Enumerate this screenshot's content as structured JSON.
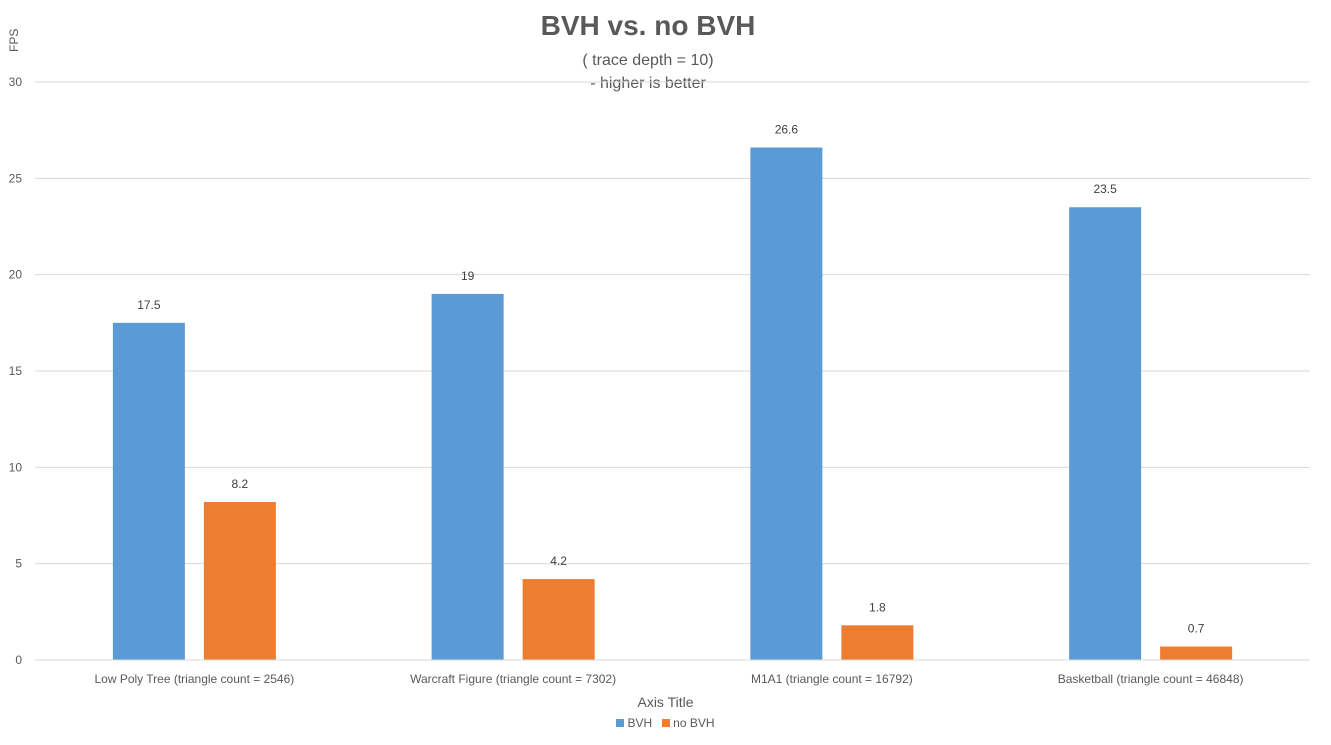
{
  "chart_data": {
    "type": "bar",
    "title": "BVH vs. no BVH",
    "subtitle_lines": [
      "( trace depth = 10)",
      "- higher is better"
    ],
    "xlabel": "Axis Title",
    "ylabel": "FPS",
    "ylim": [
      0,
      30
    ],
    "yticks": [
      "0",
      "5",
      "10",
      "15",
      "20",
      "25",
      "30"
    ],
    "grid": true,
    "legend_position": "bottom",
    "categories": [
      "Low Poly Tree (triangle count = 2546)",
      "Warcraft Figure (triangle count = 7302)",
      "M1A1 (triangle count = 16792)",
      "Basketball (triangle count = 46848)"
    ],
    "series": [
      {
        "name": "BVH",
        "color": "#5B9BD5",
        "values": [
          17.5,
          19,
          26.6,
          23.5
        ]
      },
      {
        "name": "no BVH",
        "color": "#ED7D31",
        "values": [
          8.2,
          4.2,
          1.8,
          0.7
        ]
      }
    ]
  }
}
